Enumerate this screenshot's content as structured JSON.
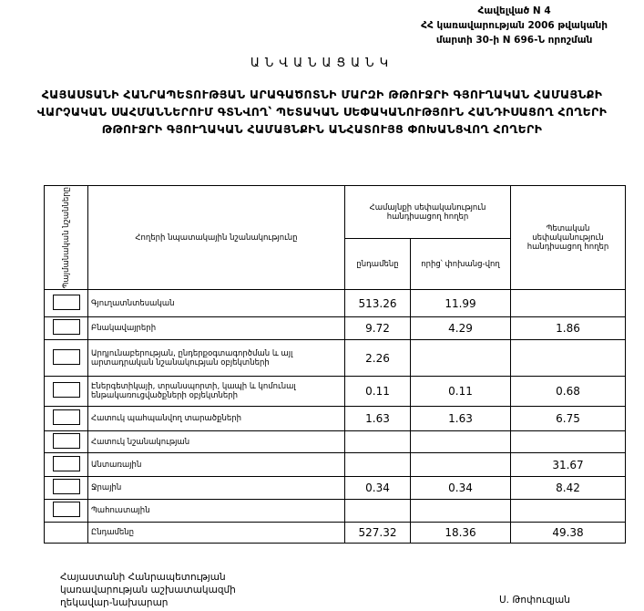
{
  "header": {
    "annex": [
      "Հավելված N 4",
      "ՀՀ կառավարության 2006 թվականի",
      "մարտի 30-ի N 696-Ն որոշման"
    ],
    "title": "ԱՆՎԱՆԱՑԱՆԿ",
    "heading": [
      "ՀԱՅԱՍՏԱՆԻ ՀԱՆՐԱՊԵՏՈՒԹՅԱՆ ԱՐԱԳԱԾՈՏՆԻ ՄԱՐԶԻ ԹԹՈՒՋՐԻ ԳՅՈՒՂԱԿԱՆ ՀԱՄԱՅՆՔԻ",
      "ՎԱՐՉԱԿԱՆ ՍԱՀՄԱՆՆԵՐՈՒՄ ԳՏՆՎՈՂ՝ ՊԵՏԱԿԱՆ ՍԵՓԱԿԱՆՈՒԹՅՈՒՆ ՀԱՆԴԻՍԱՑՈՂ ՀՈՂԵՐԻ",
      "ԹԹՈՒՋՐԻ ԳՅՈՒՂԱԿԱՆ ՀԱՄԱՅՆՔԻՆ ԱՆՀԱՏՈՒՅՑ ՓՈԽԱՆՑՎՈՂ ՀՈՂԵՐԻ"
    ]
  },
  "table": {
    "columns": {
      "symbols": "Պայմանական նշանները",
      "purpose": "Հողերի նպատակային նշանակությունը",
      "community": "Համայնքի սեփականություն հանդիսացող հողեր",
      "total": "ընդամենը",
      "transferred": "որից՝ փոխանց-վող",
      "state": "Պետական սեփականություն հանդիսացող հողեր"
    },
    "rows": [
      {
        "label": "Գյուղատնտեսական",
        "values": [
          513.26,
          11.99,
          null
        ]
      },
      {
        "label": "Բնակավայրերի",
        "values": [
          9.72,
          4.29,
          1.86
        ]
      },
      {
        "label": "Արդյունաբերության, ընդերքօգտագործման և այլ արտադրական նշանակության օբյեկտների",
        "values": [
          2.26,
          null,
          null
        ]
      },
      {
        "label": "Էներգետիկայի, տրանսպորտի, կապի և կոմունալ ենթակառուցվածքների օբյեկտների",
        "values": [
          0.11,
          0.11,
          0.68
        ]
      },
      {
        "label": "Հատուկ պահպանվող տարածքների",
        "values": [
          1.63,
          1.63,
          6.75
        ]
      },
      {
        "label": "Հատուկ նշանակության",
        "values": [
          null,
          null,
          null
        ]
      },
      {
        "label": "Անտառային",
        "values": [
          null,
          null,
          31.67
        ]
      },
      {
        "label": "Ջրային",
        "values": [
          0.34,
          0.34,
          8.42
        ]
      },
      {
        "label": "Պահուստային",
        "values": [
          null,
          null,
          null
        ]
      }
    ],
    "total": {
      "label": "Ընդամենը",
      "values": [
        527.32,
        18.36,
        49.38
      ]
    }
  },
  "footer": {
    "position": [
      "Հայաստանի Հանրապետության",
      "կառավարության աշխատակազմի",
      "ղեկավար-նախարար"
    ],
    "name": "Ս. Թոփուզյան"
  }
}
